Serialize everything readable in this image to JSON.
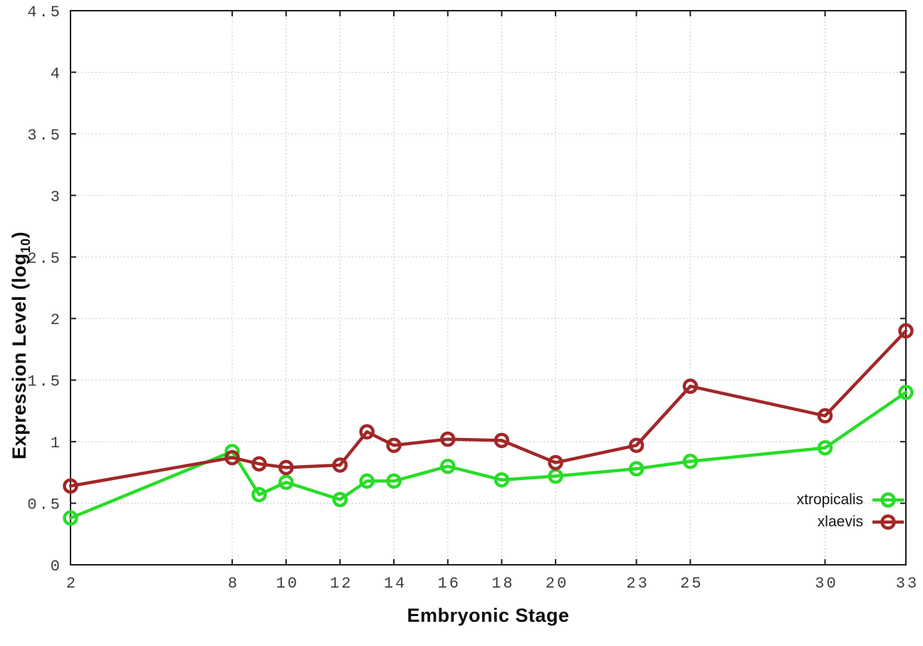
{
  "chart_data": {
    "type": "line",
    "xlabel": "Embryonic Stage",
    "ylabel": "Expression Level (log10)",
    "ylabel_parts": {
      "main": "Expression Level (log",
      "sub": "10",
      "close": ")"
    },
    "xlim": [
      2,
      33
    ],
    "ylim": [
      0,
      4.5
    ],
    "xticks": [
      2,
      8,
      10,
      12,
      14,
      16,
      18,
      20,
      23,
      25,
      30,
      33
    ],
    "yticks": [
      0,
      0.5,
      1,
      1.5,
      2,
      2.5,
      3,
      3.5,
      4,
      4.5
    ],
    "grid": true,
    "legend_position": "inside-bottom-right",
    "x": [
      2,
      8,
      9,
      10,
      12,
      13,
      14,
      16,
      18,
      20,
      23,
      25,
      30,
      33
    ],
    "series": [
      {
        "name": "xtropicalis",
        "color": "#28dc28",
        "values": [
          0.38,
          0.92,
          0.57,
          0.67,
          0.53,
          0.68,
          0.68,
          0.8,
          0.69,
          0.72,
          0.78,
          0.84,
          0.95,
          1.4
        ]
      },
      {
        "name": "xlaevis",
        "color": "#a02828",
        "values": [
          0.64,
          0.87,
          0.82,
          0.79,
          0.81,
          1.08,
          0.97,
          1.02,
          1.01,
          0.83,
          0.97,
          1.45,
          1.21,
          1.9
        ]
      }
    ],
    "colors": {
      "background": "#ffffff",
      "grid": "#b9b9b9",
      "axis": "#1c1c1c",
      "tick_label": "#3c3c3c"
    }
  }
}
